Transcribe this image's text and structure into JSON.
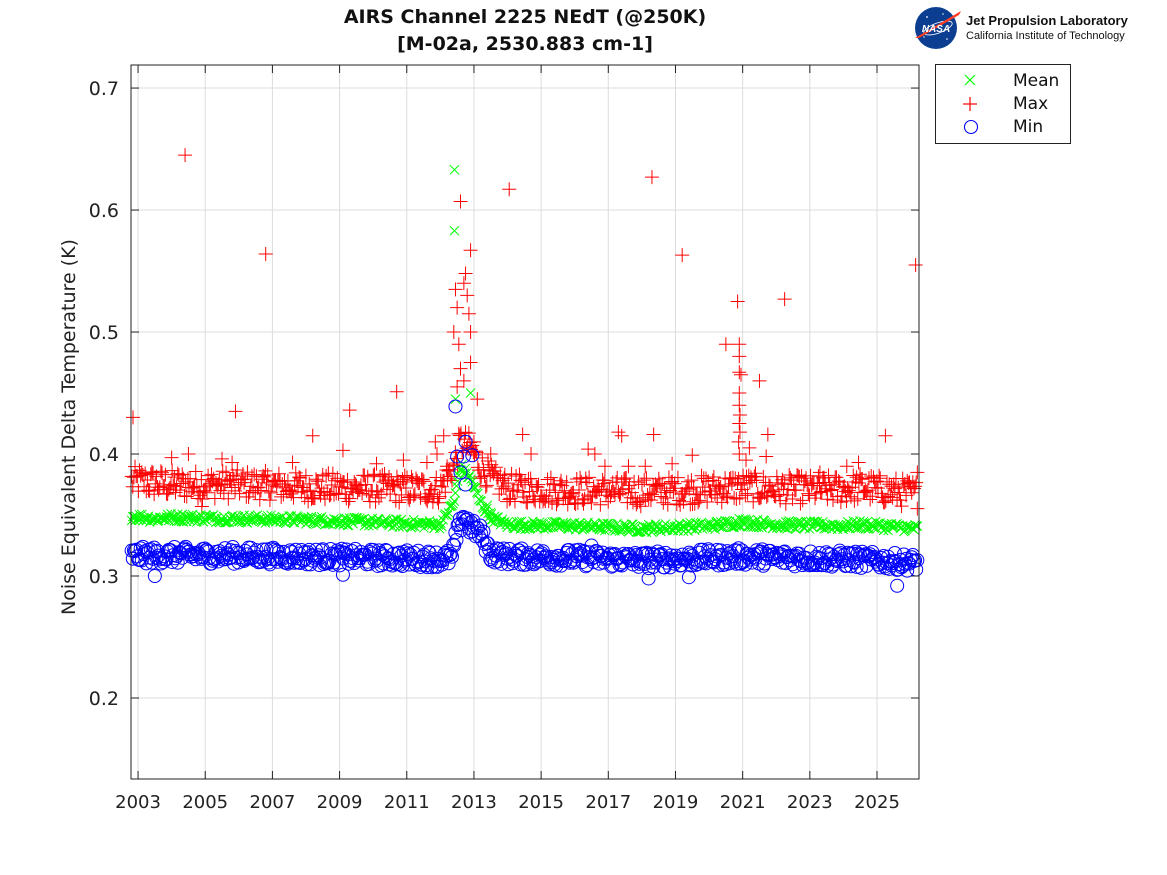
{
  "header": {
    "title_line1": "AIRS Channel 2225 NEdT (@250K)",
    "title_line2": "[M-02a, 2530.883 cm-1]"
  },
  "logo": {
    "badge_text": "NASA",
    "org_name": "Jet Propulsion Laboratory",
    "org_subtitle": "California Institute of Technology"
  },
  "chart_data": {
    "type": "scatter",
    "title": "AIRS Channel 2225 NEdT (@250K) [M-02a, 2530.883 cm-1]",
    "xlabel": "",
    "ylabel": "Noise Equivalent Delta Temperature (K)",
    "xlim": [
      2002.79,
      2026.25
    ],
    "ylim": [
      0.1336,
      0.7189
    ],
    "xticks": [
      2003,
      2005,
      2007,
      2009,
      2011,
      2013,
      2015,
      2017,
      2019,
      2021,
      2023,
      2025
    ],
    "xtick_labels": [
      "2003",
      "2005",
      "2007",
      "2009",
      "2011",
      "2013",
      "2015",
      "2017",
      "2019",
      "2021",
      "2023",
      "2025"
    ],
    "yticks": [
      0.2,
      0.3,
      0.4,
      0.5,
      0.6,
      0.7
    ],
    "ytick_labels": [
      "0.2",
      "0.3",
      "0.4",
      "0.5",
      "0.6",
      "0.7"
    ],
    "grid": true,
    "legend_position": "outside-top-right",
    "series": [
      {
        "name": "Mean",
        "marker": "x",
        "color": "#00ff00",
        "baseline": {
          "x": [
            2002.8,
            2003.5,
            2004.0,
            2006.0,
            2008.0,
            2010.0,
            2012.0,
            2012.4,
            2012.6,
            2012.9,
            2013.2,
            2013.5,
            2014.0,
            2016.0,
            2018.0,
            2020.0,
            2021.0,
            2022.0,
            2024.0,
            2024.5,
            2026.2
          ],
          "y": [
            0.349,
            0.347,
            0.348,
            0.347,
            0.346,
            0.344,
            0.342,
            0.36,
            0.39,
            0.38,
            0.36,
            0.348,
            0.342,
            0.341,
            0.339,
            0.341,
            0.344,
            0.342,
            0.341,
            0.342,
            0.339
          ],
          "spread": 0.0035
        },
        "outliers": [
          {
            "x": 2012.42,
            "y": 0.633
          },
          {
            "x": 2012.42,
            "y": 0.583
          },
          {
            "x": 2012.45,
            "y": 0.445
          },
          {
            "x": 2012.9,
            "y": 0.45
          },
          {
            "x": 2013.4,
            "y": 0.358
          },
          {
            "x": 2013.5,
            "y": 0.352
          },
          {
            "x": 2020.9,
            "y": 0.347
          }
        ]
      },
      {
        "name": "Max",
        "marker": "+",
        "color": "#ff0000",
        "baseline": {
          "x": [
            2002.8,
            2004.0,
            2006.0,
            2008.0,
            2010.0,
            2012.0,
            2012.4,
            2012.6,
            2012.9,
            2013.2,
            2013.5,
            2014.0,
            2016.0,
            2018.0,
            2020.0,
            2021.0,
            2022.0,
            2024.0,
            2024.5,
            2026.2
          ],
          "y": [
            0.378,
            0.375,
            0.375,
            0.373,
            0.372,
            0.371,
            0.39,
            0.41,
            0.405,
            0.39,
            0.38,
            0.372,
            0.37,
            0.369,
            0.371,
            0.373,
            0.371,
            0.371,
            0.373,
            0.367
          ],
          "spread": 0.012
        },
        "outliers": [
          {
            "x": 2002.85,
            "y": 0.43
          },
          {
            "x": 2004.4,
            "y": 0.645
          },
          {
            "x": 2004.0,
            "y": 0.397
          },
          {
            "x": 2004.5,
            "y": 0.4
          },
          {
            "x": 2004.9,
            "y": 0.357
          },
          {
            "x": 2005.5,
            "y": 0.396
          },
          {
            "x": 2005.8,
            "y": 0.393
          },
          {
            "x": 2005.9,
            "y": 0.435
          },
          {
            "x": 2006.8,
            "y": 0.564
          },
          {
            "x": 2007.6,
            "y": 0.393
          },
          {
            "x": 2008.2,
            "y": 0.415
          },
          {
            "x": 2009.1,
            "y": 0.403
          },
          {
            "x": 2009.3,
            "y": 0.436
          },
          {
            "x": 2010.1,
            "y": 0.392
          },
          {
            "x": 2010.7,
            "y": 0.451
          },
          {
            "x": 2010.9,
            "y": 0.395
          },
          {
            "x": 2011.6,
            "y": 0.393
          },
          {
            "x": 2011.85,
            "y": 0.41
          },
          {
            "x": 2012.2,
            "y": 0.39
          },
          {
            "x": 2012.4,
            "y": 0.5
          },
          {
            "x": 2012.45,
            "y": 0.535
          },
          {
            "x": 2012.5,
            "y": 0.52
          },
          {
            "x": 2012.55,
            "y": 0.49
          },
          {
            "x": 2012.6,
            "y": 0.607
          },
          {
            "x": 2012.7,
            "y": 0.54
          },
          {
            "x": 2012.75,
            "y": 0.548
          },
          {
            "x": 2012.8,
            "y": 0.53
          },
          {
            "x": 2012.85,
            "y": 0.515
          },
          {
            "x": 2012.9,
            "y": 0.567
          },
          {
            "x": 2012.9,
            "y": 0.5
          },
          {
            "x": 2012.9,
            "y": 0.475
          },
          {
            "x": 2012.6,
            "y": 0.47
          },
          {
            "x": 2012.7,
            "y": 0.46
          },
          {
            "x": 2012.5,
            "y": 0.455
          },
          {
            "x": 2013.1,
            "y": 0.445
          },
          {
            "x": 2013.0,
            "y": 0.41
          },
          {
            "x": 2012.1,
            "y": 0.415
          },
          {
            "x": 2011.9,
            "y": 0.4
          },
          {
            "x": 2013.5,
            "y": 0.4
          },
          {
            "x": 2013.9,
            "y": 0.38
          },
          {
            "x": 2014.05,
            "y": 0.617
          },
          {
            "x": 2014.45,
            "y": 0.416
          },
          {
            "x": 2014.7,
            "y": 0.4
          },
          {
            "x": 2016.4,
            "y": 0.404
          },
          {
            "x": 2016.6,
            "y": 0.4
          },
          {
            "x": 2016.9,
            "y": 0.39
          },
          {
            "x": 2017.3,
            "y": 0.418
          },
          {
            "x": 2017.4,
            "y": 0.415
          },
          {
            "x": 2017.6,
            "y": 0.39
          },
          {
            "x": 2018.3,
            "y": 0.627
          },
          {
            "x": 2018.35,
            "y": 0.416
          },
          {
            "x": 2018.1,
            "y": 0.39
          },
          {
            "x": 2019.2,
            "y": 0.563
          },
          {
            "x": 2019.5,
            "y": 0.399
          },
          {
            "x": 2018.9,
            "y": 0.392
          },
          {
            "x": 2020.5,
            "y": 0.49
          },
          {
            "x": 2020.85,
            "y": 0.525
          },
          {
            "x": 2020.9,
            "y": 0.49
          },
          {
            "x": 2020.9,
            "y": 0.48
          },
          {
            "x": 2020.9,
            "y": 0.467
          },
          {
            "x": 2020.95,
            "y": 0.465
          },
          {
            "x": 2020.9,
            "y": 0.45
          },
          {
            "x": 2020.9,
            "y": 0.44
          },
          {
            "x": 2020.92,
            "y": 0.432
          },
          {
            "x": 2020.9,
            "y": 0.425
          },
          {
            "x": 2020.92,
            "y": 0.418
          },
          {
            "x": 2020.88,
            "y": 0.41
          },
          {
            "x": 2020.9,
            "y": 0.4
          },
          {
            "x": 2021.1,
            "y": 0.395
          },
          {
            "x": 2021.5,
            "y": 0.46
          },
          {
            "x": 2021.2,
            "y": 0.405
          },
          {
            "x": 2021.7,
            "y": 0.398
          },
          {
            "x": 2021.75,
            "y": 0.416
          },
          {
            "x": 2022.25,
            "y": 0.527
          },
          {
            "x": 2023.3,
            "y": 0.385
          },
          {
            "x": 2024.1,
            "y": 0.39
          },
          {
            "x": 2024.45,
            "y": 0.393
          },
          {
            "x": 2025.25,
            "y": 0.415
          },
          {
            "x": 2026.15,
            "y": 0.555
          },
          {
            "x": 2026.2,
            "y": 0.385
          }
        ]
      },
      {
        "name": "Min",
        "marker": "o",
        "color": "#0000ff",
        "baseline": {
          "x": [
            2002.8,
            2004.0,
            2006.0,
            2008.0,
            2010.0,
            2012.0,
            2012.35,
            2012.45,
            2012.7,
            2012.9,
            2013.2,
            2013.5,
            2014.0,
            2016.0,
            2018.0,
            2020.0,
            2021.0,
            2022.0,
            2024.0,
            2026.2
          ],
          "y": [
            0.317,
            0.317,
            0.317,
            0.316,
            0.315,
            0.314,
            0.315,
            0.33,
            0.35,
            0.34,
            0.335,
            0.318,
            0.316,
            0.315,
            0.313,
            0.315,
            0.316,
            0.315,
            0.314,
            0.311
          ],
          "spread": 0.007
        },
        "outliers": [
          {
            "x": 2003.5,
            "y": 0.3
          },
          {
            "x": 2009.1,
            "y": 0.301
          },
          {
            "x": 2012.45,
            "y": 0.439
          },
          {
            "x": 2012.5,
            "y": 0.398
          },
          {
            "x": 2012.75,
            "y": 0.41
          },
          {
            "x": 2012.7,
            "y": 0.398
          },
          {
            "x": 2012.95,
            "y": 0.399
          },
          {
            "x": 2012.6,
            "y": 0.385
          },
          {
            "x": 2012.75,
            "y": 0.375
          },
          {
            "x": 2016.5,
            "y": 0.325
          },
          {
            "x": 2018.2,
            "y": 0.298
          },
          {
            "x": 2019.4,
            "y": 0.299
          },
          {
            "x": 2025.6,
            "y": 0.292
          }
        ]
      }
    ]
  }
}
